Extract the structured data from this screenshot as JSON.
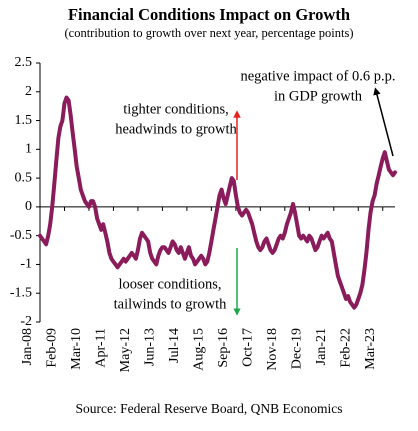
{
  "chart_data": {
    "type": "line",
    "title": "Financial Conditions Impact on Growth",
    "subtitle": "(contribution to growth over next year, percentage points)",
    "source": "Source: Federal Reserve Board, QNB Economics",
    "annotations": [
      {
        "lines": [
          "tighter conditions,",
          "headwinds to growth"
        ],
        "arrow_color": "#e8231f"
      },
      {
        "lines": [
          "looser conditions,",
          "tailwinds to growth"
        ],
        "arrow_color": "#1fa84a"
      },
      {
        "lines": [
          "negative  impact of 0.6 p.p.",
          "in GDP growth"
        ],
        "arrow_color": "#000000"
      }
    ],
    "categories": [
      "Jan-08",
      null,
      null,
      null,
      null,
      null,
      null,
      null,
      null,
      null,
      null,
      null,
      "Feb-09",
      null,
      null,
      null,
      null,
      null,
      null,
      null,
      null,
      null,
      null,
      null,
      "Mar-10",
      null,
      null,
      null,
      null,
      null,
      null,
      null,
      null,
      null,
      null,
      null,
      "Apr-11",
      null,
      null,
      null,
      null,
      null,
      null,
      null,
      null,
      null,
      null,
      null,
      "May-12",
      null,
      null,
      null,
      null,
      null,
      null,
      null,
      null,
      null,
      null,
      null,
      "Jun-13",
      null,
      null,
      null,
      null,
      null,
      null,
      null,
      null,
      null,
      null,
      null,
      "Jul-14",
      null,
      null,
      null,
      null,
      null,
      null,
      null,
      null,
      null,
      null,
      null,
      "Aug-15",
      null,
      null,
      null,
      null,
      null,
      null,
      null,
      null,
      null,
      null,
      null,
      "Sep-16",
      null,
      null,
      null,
      null,
      null,
      null,
      null,
      null,
      null,
      null,
      null,
      "Oct-17",
      null,
      null,
      null,
      null,
      null,
      null,
      null,
      null,
      null,
      null,
      null,
      "Nov-18",
      null,
      null,
      null,
      null,
      null,
      null,
      null,
      null,
      null,
      null,
      null,
      "Dec-19",
      null,
      null,
      null,
      null,
      null,
      null,
      null,
      null,
      null,
      null,
      null,
      "Jan-21",
      null,
      null,
      null,
      null,
      null,
      null,
      null,
      null,
      null,
      null,
      null,
      "Feb-22",
      null,
      null,
      null,
      null,
      null,
      null,
      null,
      null,
      null,
      null,
      null,
      "Mar-23",
      null,
      null,
      null,
      null,
      null,
      null
    ],
    "series": [
      {
        "name": "Financial conditions impact",
        "color": "#8b1c5c",
        "values": [
          -0.5,
          -0.55,
          -0.6,
          -0.65,
          -0.5,
          -0.3,
          0.0,
          0.4,
          0.8,
          1.2,
          1.4,
          1.5,
          1.8,
          1.9,
          1.85,
          1.6,
          1.3,
          1.0,
          0.7,
          0.5,
          0.3,
          0.2,
          0.1,
          0.05,
          0.0,
          0.1,
          0.1,
          0.0,
          -0.2,
          -0.3,
          -0.4,
          -0.3,
          -0.45,
          -0.6,
          -0.8,
          -0.9,
          -0.95,
          -1.0,
          -1.05,
          -1.0,
          -0.95,
          -0.9,
          -0.95,
          -0.9,
          -0.85,
          -0.8,
          -0.85,
          -0.9,
          -0.75,
          -0.55,
          -0.45,
          -0.5,
          -0.55,
          -0.6,
          -0.8,
          -0.9,
          -0.95,
          -1.0,
          -0.85,
          -0.75,
          -0.7,
          -0.7,
          -0.75,
          -0.8,
          -0.7,
          -0.6,
          -0.65,
          -0.75,
          -0.8,
          -0.7,
          -0.8,
          -0.9,
          -0.8,
          -0.7,
          -0.85,
          -0.9,
          -1.0,
          -0.95,
          -0.9,
          -0.85,
          -0.9,
          -1.0,
          -0.95,
          -0.8,
          -0.6,
          -0.4,
          -0.2,
          0.0,
          0.2,
          0.3,
          0.15,
          0.05,
          0.2,
          0.35,
          0.5,
          0.45,
          0.2,
          0.0,
          -0.1,
          -0.15,
          -0.1,
          -0.05,
          -0.1,
          -0.2,
          -0.3,
          -0.45,
          -0.6,
          -0.7,
          -0.75,
          -0.7,
          -0.6,
          -0.55,
          -0.65,
          -0.75,
          -0.8,
          -0.75,
          -0.65,
          -0.55,
          -0.5,
          -0.55,
          -0.45,
          -0.3,
          -0.2,
          -0.1,
          0.05,
          -0.1,
          -0.3,
          -0.5,
          -0.55,
          -0.5,
          -0.55,
          -0.6,
          -0.5,
          -0.55,
          -0.65,
          -0.75,
          -0.7,
          -0.6,
          -0.5,
          -0.55,
          -0.5,
          -0.45,
          -0.55,
          -0.6,
          -0.8,
          -1.0,
          -1.2,
          -1.3,
          -1.4,
          -1.5,
          -1.6,
          -1.55,
          -1.65,
          -1.7,
          -1.75,
          -1.7,
          -1.6,
          -1.5,
          -1.35,
          -1.1,
          -0.8,
          -0.4,
          -0.1,
          0.1,
          0.2,
          0.4,
          0.55,
          0.7,
          0.85,
          0.95,
          0.8,
          0.65,
          0.6,
          0.55,
          0.6
        ]
      }
    ],
    "ylim": [
      -2,
      2.5
    ],
    "yticks": [
      2.5,
      2,
      1.5,
      1,
      0.5,
      0,
      -0.5,
      -1,
      -1.5,
      -2
    ],
    "grid": false
  }
}
